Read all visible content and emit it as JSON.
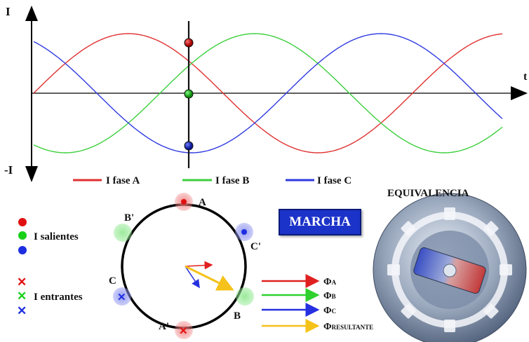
{
  "axis": {
    "y_top": "I",
    "y_bottom": "-I",
    "x_label": "t"
  },
  "legend": [
    {
      "label": "I fase A",
      "color": "#e03030"
    },
    {
      "label": "I fase B",
      "color": "#3ccf3c"
    },
    {
      "label": "I fase C",
      "color": "#2f3ae0"
    }
  ],
  "winding": {
    "A": "A",
    "A_prime": "A'",
    "B": "B",
    "B_prime": "B'",
    "C": "C",
    "C_prime": "C'"
  },
  "currents": {
    "salientes": "I salientes",
    "entrantes": "I entrantes",
    "cross_symbol": "✕"
  },
  "marcha": "MARCHA",
  "equivalencia": "EQUIVALENCIA",
  "flux_legend": [
    {
      "main": "Φ",
      "sub": "A",
      "color": "#e02020"
    },
    {
      "main": "Φ",
      "sub": "B",
      "color": "#2fd12f"
    },
    {
      "main": "Φ",
      "sub": "C",
      "color": "#2530e0"
    },
    {
      "main": "Φ",
      "sub": "RESULTANTE",
      "color": "#f4c21a"
    }
  ],
  "colors": {
    "phase_a": "#e03030",
    "phase_b": "#3ccf3c",
    "phase_c": "#2f3ae0",
    "resultant": "#f4c21a"
  }
}
